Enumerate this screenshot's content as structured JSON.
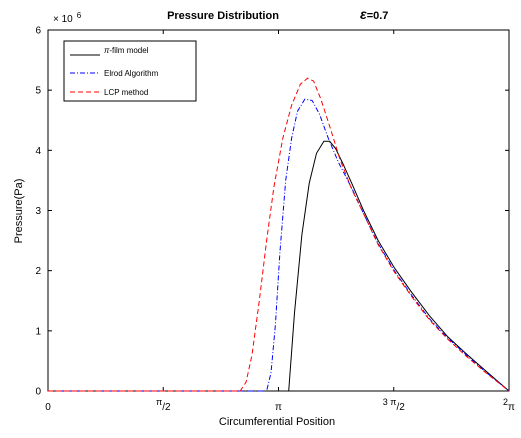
{
  "chart_data": {
    "type": "line",
    "title": "Pressure Distribution",
    "annotation": {
      "symbol": "ε",
      "text": "=0.7"
    },
    "xlabel": "Circumferential Position",
    "ylabel": "Pressure(Pa)",
    "x_unit": "rad",
    "xlim": [
      0,
      6.2832
    ],
    "ylim": [
      0,
      6000000
    ],
    "y_multiplier_label": {
      "base": "× 10",
      "exponent": "6"
    },
    "grid": false,
    "legend_position": "top-left",
    "x_ticks": [
      {
        "value": 0,
        "label": "0",
        "sup": ""
      },
      {
        "value": 1.5708,
        "label": "/2",
        "sup": "π"
      },
      {
        "value": 3.1416,
        "label": "π",
        "sup": ""
      },
      {
        "value": 4.7124,
        "label": "/2",
        "sup": "3 π"
      },
      {
        "value": 6.2832,
        "label": "π",
        "sup": "2"
      }
    ],
    "y_ticks": [
      {
        "value": 0,
        "label": "0"
      },
      {
        "value": 1000000,
        "label": "1"
      },
      {
        "value": 2000000,
        "label": "2"
      },
      {
        "value": 3000000,
        "label": "3"
      },
      {
        "value": 4000000,
        "label": "4"
      },
      {
        "value": 5000000,
        "label": "5"
      },
      {
        "value": 6000000,
        "label": "6"
      }
    ],
    "series": [
      {
        "name_sup": "π",
        "name": "-film model",
        "color": "#000000",
        "dash": "solid",
        "points": [
          [
            0,
            0
          ],
          [
            3.14,
            0
          ],
          [
            3.28,
            0
          ],
          [
            3.36,
            1300000
          ],
          [
            3.46,
            2600000
          ],
          [
            3.56,
            3450000
          ],
          [
            3.66,
            3950000
          ],
          [
            3.76,
            4150000
          ],
          [
            3.84,
            4150000
          ],
          [
            3.92,
            4030000
          ],
          [
            4.02,
            3780000
          ],
          [
            4.14,
            3450000
          ],
          [
            4.3,
            3000000
          ],
          [
            4.5,
            2500000
          ],
          [
            4.72,
            2050000
          ],
          [
            4.95,
            1650000
          ],
          [
            5.2,
            1250000
          ],
          [
            5.45,
            900000
          ],
          [
            5.7,
            620000
          ],
          [
            5.95,
            350000
          ],
          [
            6.2832,
            0
          ]
        ]
      },
      {
        "name": "Elrod Algorithm",
        "color": "#0000ff",
        "dash": "dashdot",
        "points": [
          [
            0,
            0
          ],
          [
            2.8,
            0
          ],
          [
            2.98,
            0
          ],
          [
            3.04,
            300000
          ],
          [
            3.1,
            1100000
          ],
          [
            3.16,
            2300000
          ],
          [
            3.24,
            3500000
          ],
          [
            3.32,
            4200000
          ],
          [
            3.4,
            4650000
          ],
          [
            3.5,
            4850000
          ],
          [
            3.6,
            4830000
          ],
          [
            3.7,
            4600000
          ],
          [
            3.82,
            4200000
          ],
          [
            3.96,
            3800000
          ],
          [
            4.14,
            3370000
          ],
          [
            4.3,
            2950000
          ],
          [
            4.5,
            2450000
          ],
          [
            4.72,
            2000000
          ],
          [
            4.95,
            1600000
          ],
          [
            5.2,
            1200000
          ],
          [
            5.45,
            880000
          ],
          [
            5.7,
            600000
          ],
          [
            5.95,
            330000
          ],
          [
            6.2832,
            0
          ]
        ]
      },
      {
        "name": "LCP method",
        "color": "#ff0000",
        "dash": "dashed",
        "points": [
          [
            0,
            0
          ],
          [
            2.48,
            0
          ],
          [
            2.62,
            0
          ],
          [
            2.7,
            150000
          ],
          [
            2.78,
            600000
          ],
          [
            2.88,
            1500000
          ],
          [
            2.98,
            2500000
          ],
          [
            3.08,
            3400000
          ],
          [
            3.2,
            4200000
          ],
          [
            3.32,
            4750000
          ],
          [
            3.44,
            5100000
          ],
          [
            3.54,
            5200000
          ],
          [
            3.62,
            5150000
          ],
          [
            3.72,
            4850000
          ],
          [
            3.84,
            4400000
          ],
          [
            3.98,
            3850000
          ],
          [
            4.14,
            3350000
          ],
          [
            4.3,
            2950000
          ],
          [
            4.5,
            2430000
          ],
          [
            4.72,
            1980000
          ],
          [
            4.95,
            1580000
          ],
          [
            5.2,
            1180000
          ],
          [
            5.45,
            860000
          ],
          [
            5.7,
            580000
          ],
          [
            5.95,
            320000
          ],
          [
            6.2832,
            0
          ]
        ]
      }
    ]
  }
}
